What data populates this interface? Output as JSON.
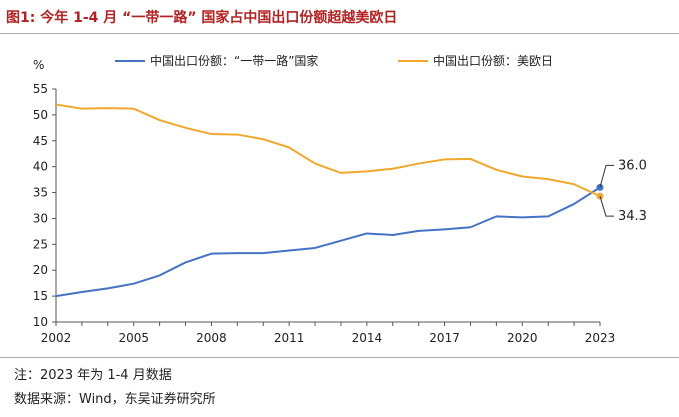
{
  "header": {
    "title": "图1: 今年 1-4 月 “一带一路” 国家占中国出口份额超越美欧日"
  },
  "chart_data": {
    "type": "line",
    "title": "图1: 今年 1-4 月 “一带一路” 国家占中国出口份额超越美欧日",
    "ylabel": "%",
    "xlabel": "",
    "ylim": [
      10,
      55
    ],
    "yticks": [
      10,
      15,
      20,
      25,
      30,
      35,
      40,
      45,
      50,
      55
    ],
    "xlim": [
      2002,
      2023
    ],
    "xticks": [
      2002,
      2005,
      2008,
      2011,
      2014,
      2017,
      2020,
      2023
    ],
    "grid": false,
    "legend": "top",
    "x": [
      2002,
      2003,
      2004,
      2005,
      2006,
      2007,
      2008,
      2009,
      2010,
      2011,
      2012,
      2013,
      2014,
      2015,
      2016,
      2017,
      2018,
      2019,
      2020,
      2021,
      2022,
      2023
    ],
    "series": [
      {
        "name": "中国出口份额：“一带一路”国家",
        "color": "#4472c4",
        "values": [
          15.0,
          15.8,
          16.5,
          17.4,
          19.0,
          21.5,
          23.2,
          23.3,
          23.3,
          23.8,
          24.3,
          25.7,
          27.1,
          26.8,
          27.6,
          27.9,
          28.3,
          30.4,
          30.2,
          30.4,
          32.8,
          36.0
        ]
      },
      {
        "name": "中国出口份额：美欧日",
        "color": "#f0a830",
        "values": [
          52.0,
          51.2,
          51.3,
          51.2,
          49.0,
          47.5,
          46.3,
          46.2,
          45.3,
          43.7,
          40.6,
          38.8,
          39.1,
          39.6,
          40.6,
          41.4,
          41.5,
          39.4,
          38.1,
          37.6,
          36.6,
          34.3
        ]
      }
    ],
    "annotations": [
      "36.0",
      "34.3"
    ]
  },
  "footer": {
    "note": "注：2023 年为 1-4 月数据",
    "source": "数据来源：Wind，东吴证券研究所"
  }
}
